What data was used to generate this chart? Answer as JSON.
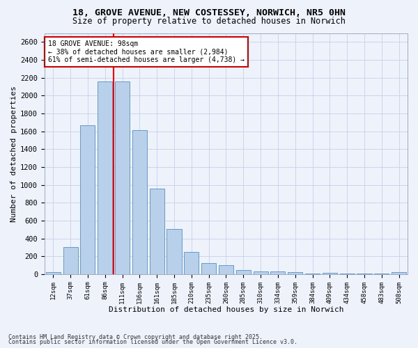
{
  "title1": "18, GROVE AVENUE, NEW COSTESSEY, NORWICH, NR5 0HN",
  "title2": "Size of property relative to detached houses in Norwich",
  "xlabel": "Distribution of detached houses by size in Norwich",
  "ylabel": "Number of detached properties",
  "bar_color": "#b8d0ea",
  "bar_edge_color": "#6699cc",
  "background_color": "#eef2fb",
  "grid_color": "#c8d0e8",
  "categories": [
    "12sqm",
    "37sqm",
    "61sqm",
    "86sqm",
    "111sqm",
    "136sqm",
    "161sqm",
    "185sqm",
    "210sqm",
    "235sqm",
    "260sqm",
    "285sqm",
    "310sqm",
    "334sqm",
    "359sqm",
    "384sqm",
    "409sqm",
    "434sqm",
    "458sqm",
    "483sqm",
    "508sqm"
  ],
  "values": [
    20,
    300,
    1670,
    2160,
    2160,
    1615,
    960,
    505,
    245,
    125,
    100,
    45,
    30,
    30,
    20,
    5,
    15,
    5,
    5,
    5,
    20
  ],
  "ylim": [
    0,
    2700
  ],
  "yticks": [
    0,
    200,
    400,
    600,
    800,
    1000,
    1200,
    1400,
    1600,
    1800,
    2000,
    2200,
    2400,
    2600
  ],
  "red_line_x": 3.5,
  "annotation_text": "18 GROVE AVENUE: 98sqm\n← 38% of detached houses are smaller (2,984)\n61% of semi-detached houses are larger (4,738) →",
  "annotation_box_color": "#ffffff",
  "annotation_box_edge_color": "#cc0000",
  "footer1": "Contains HM Land Registry data © Crown copyright and database right 2025.",
  "footer2": "Contains public sector information licensed under the Open Government Licence v3.0."
}
